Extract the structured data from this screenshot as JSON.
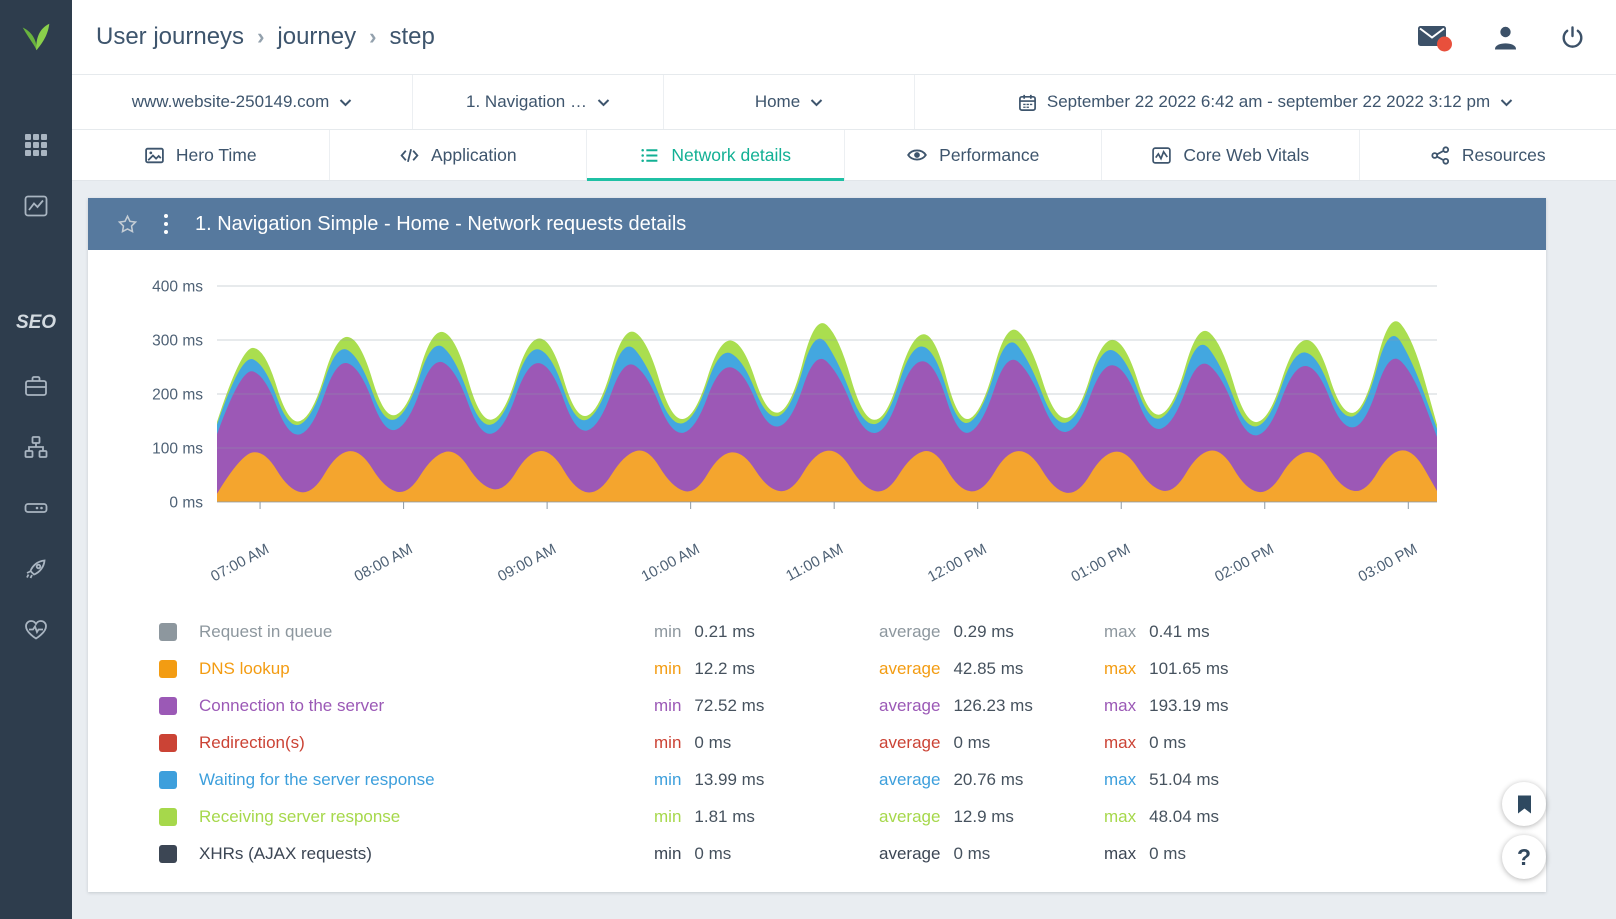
{
  "header": {
    "breadcrumb": [
      "User journeys",
      "journey",
      "step"
    ],
    "breadcrumb_separator": "›",
    "icons": [
      "mail-icon",
      "user-icon",
      "power-icon"
    ],
    "mail_badge_color": "#e8503c"
  },
  "sidebar": {
    "seo_label": "SEO",
    "items": [
      {
        "icon": "apps-grid-icon"
      },
      {
        "icon": "analytics-chart-icon"
      },
      {
        "icon": "seo-label"
      },
      {
        "icon": "briefcase-icon"
      },
      {
        "icon": "sitemap-icon"
      },
      {
        "icon": "drive-icon"
      },
      {
        "icon": "rocket-icon"
      },
      {
        "icon": "health-heart-icon"
      }
    ],
    "logo_icon": "leaf-logo-icon",
    "logo_color": "#7dc242"
  },
  "filters": {
    "site": "www.website-250149.com",
    "step": "1. Navigation …",
    "page": "Home",
    "daterange": "September 22 2022 6:42 am - september 22 2022 3:12 pm"
  },
  "tabs": [
    {
      "label": "Hero Time",
      "icon": "image-icon",
      "active": false
    },
    {
      "label": "Application",
      "icon": "code-icon",
      "active": false
    },
    {
      "label": "Network details",
      "icon": "list-icon",
      "active": true
    },
    {
      "label": "Performance",
      "icon": "eye-icon",
      "active": false
    },
    {
      "label": "Core Web Vitals",
      "icon": "vitals-chart-icon",
      "active": false
    },
    {
      "label": "Resources",
      "icon": "share-nodes-icon",
      "active": false
    }
  ],
  "theme": {
    "accent_teal": "#1fc0a4",
    "panel_header_bg": "#56799e",
    "sidebar_bg": "#2e3d4d",
    "content_bg": "#e9edf1"
  },
  "panel": {
    "title": "1. Navigation Simple - Home - Network requests details"
  },
  "chart_data": {
    "type": "area",
    "stacked": true,
    "title": "1. Navigation Simple - Home - Network requests details",
    "ylim": [
      0,
      400
    ],
    "yticks": [
      0,
      100,
      200,
      300,
      400
    ],
    "y_unit": "ms",
    "xticks": [
      "07:00 AM",
      "08:00 AM",
      "09:00 AM",
      "10:00 AM",
      "11:00 AM",
      "12:00 PM",
      "01:00 PM",
      "02:00 PM",
      "03:00 PM"
    ],
    "xtick_minutes": [
      18,
      78,
      138,
      198,
      258,
      318,
      378,
      438,
      498
    ],
    "x_minutes_range": [
      0,
      510
    ],
    "point_interval_minutes": 10,
    "legend_position": "bottom",
    "grid": "horizontal",
    "series": [
      {
        "name": "Request in queue",
        "color": "#8d979e",
        "constant": 0.3
      },
      {
        "name": "DNS lookup",
        "color": "#f4a52e",
        "values": [
          15,
          88,
          95,
          22,
          14,
          90,
          97,
          25,
          13,
          85,
          99,
          30,
          18,
          92,
          96,
          20,
          15,
          87,
          101,
          28,
          13,
          89,
          94,
          24,
          16,
          91,
          98,
          26,
          14,
          86,
          100,
          22,
          17,
          93,
          95,
          21,
          13,
          88,
          97,
          27,
          15,
          90,
          99,
          23,
          14,
          87,
          96,
          25,
          16,
          92,
          98,
          20
        ]
      },
      {
        "name": "Connection to the server",
        "color": "#9c58b6",
        "values": [
          110,
          160,
          140,
          95,
          120,
          175,
          150,
          100,
          130,
          185,
          145,
          90,
          115,
          170,
          155,
          105,
          125,
          180,
          135,
          95,
          120,
          165,
          150,
          110,
          130,
          190,
          140,
          100,
          115,
          175,
          160,
          95,
          125,
          185,
          145,
          105,
          120,
          170,
          150,
          100,
          130,
          180,
          135,
          95,
          115,
          165,
          155,
          110,
          125,
          190,
          140,
          100
        ]
      },
      {
        "name": "Redirection(s)",
        "color": "#c64535",
        "constant": 0
      },
      {
        "name": "Waiting for the server response",
        "color": "#43a7e0",
        "values": [
          18,
          25,
          20,
          15,
          22,
          30,
          18,
          16,
          24,
          35,
          20,
          15,
          19,
          28,
          22,
          16,
          25,
          40,
          18,
          15,
          21,
          32,
          19,
          16,
          23,
          45,
          20,
          15,
          18,
          30,
          24,
          16,
          22,
          38,
          19,
          15,
          20,
          33,
          21,
          16,
          24,
          42,
          18,
          15,
          19,
          28,
          22,
          16,
          25,
          51,
          20,
          15
        ]
      },
      {
        "name": "Receiving server response",
        "color": "#aade4f",
        "values": [
          5,
          12,
          30,
          8,
          4,
          15,
          35,
          10,
          5,
          18,
          40,
          12,
          6,
          14,
          28,
          9,
          5,
          20,
          45,
          11,
          4,
          16,
          32,
          8,
          5,
          22,
          48,
          10,
          6,
          15,
          30,
          9,
          4,
          18,
          38,
          12,
          5,
          14,
          26,
          8,
          6,
          20,
          42,
          10,
          5,
          16,
          30,
          9,
          4,
          22,
          44,
          8
        ]
      },
      {
        "name": "XHRs (AJAX requests)",
        "color": "#3d4a59",
        "constant": 0
      }
    ]
  },
  "legend": {
    "stat_labels": {
      "min": "min",
      "average": "average",
      "max": "max"
    },
    "rows": [
      {
        "name": "Request in queue",
        "color": "#8d979e",
        "min": "0.21 ms",
        "average": "0.29 ms",
        "max": "0.41 ms"
      },
      {
        "name": "DNS lookup",
        "color": "#f39c12",
        "min": "12.2 ms",
        "average": "42.85 ms",
        "max": "101.65 ms"
      },
      {
        "name": "Connection to the server",
        "color": "#9b59b6",
        "min": "72.52 ms",
        "average": "126.23 ms",
        "max": "193.19 ms"
      },
      {
        "name": "Redirection(s)",
        "color": "#cb4335",
        "min": "0 ms",
        "average": "0 ms",
        "max": "0 ms"
      },
      {
        "name": "Waiting for the server response",
        "color": "#3d9fdc",
        "min": "13.99 ms",
        "average": "20.76 ms",
        "max": "51.04 ms"
      },
      {
        "name": "Receiving server response",
        "color": "#a6d84b",
        "min": "1.81 ms",
        "average": "12.9 ms",
        "max": "48.04 ms"
      },
      {
        "name": "XHRs (AJAX requests)",
        "color": "#3c4654",
        "min": "0 ms",
        "average": "0 ms",
        "max": "0 ms"
      }
    ]
  },
  "fab": {
    "help_label": "?"
  }
}
